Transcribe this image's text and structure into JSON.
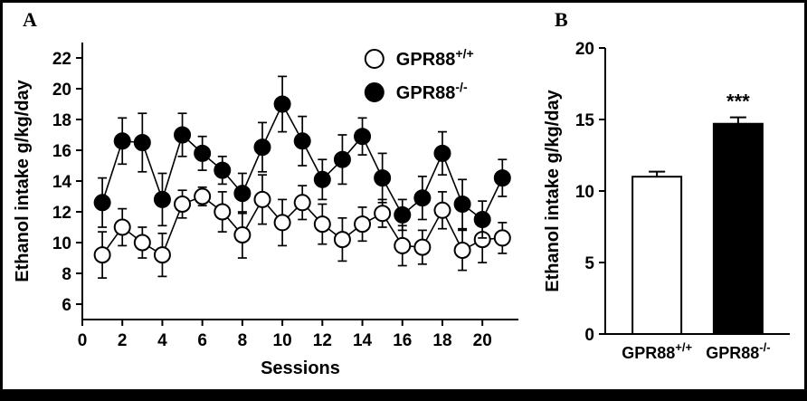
{
  "figure": {
    "panels": [
      {
        "label": "A"
      },
      {
        "label": "B"
      }
    ]
  },
  "chart_data": [
    {
      "type": "line",
      "panel": "A",
      "title": "",
      "xlabel": "Sessions",
      "ylabel": "Ethanol intake g/kg/day",
      "xlim": [
        0,
        21.8
      ],
      "ylim": [
        5,
        23
      ],
      "xticks": [
        0,
        2,
        4,
        6,
        8,
        10,
        12,
        14,
        16,
        18,
        20
      ],
      "yticks": [
        6,
        8,
        10,
        12,
        14,
        16,
        18,
        20,
        22
      ],
      "x": [
        1,
        2,
        3,
        4,
        5,
        6,
        7,
        8,
        9,
        10,
        11,
        12,
        13,
        14,
        15,
        16,
        17,
        18,
        19,
        20,
        21
      ],
      "legend_position": "top-right",
      "series": [
        {
          "name": "GPR88+/+",
          "label_base": "GPR88",
          "label_sup": "+/+",
          "marker": "open",
          "values": [
            9.2,
            11.0,
            10.0,
            9.2,
            12.5,
            13.0,
            12.0,
            10.5,
            12.8,
            11.3,
            12.6,
            11.2,
            10.2,
            11.2,
            11.9,
            9.8,
            9.7,
            12.1,
            9.5,
            10.2,
            10.3
          ],
          "errors": [
            1.5,
            1.2,
            1.0,
            1.4,
            0.9,
            0.6,
            1.3,
            1.5,
            1.6,
            1.5,
            1.1,
            1.3,
            1.4,
            1.1,
            0.9,
            1.3,
            1.1,
            1.2,
            1.3,
            1.5,
            1.0
          ]
        },
        {
          "name": "GPR88-/-",
          "label_base": "GPR88",
          "label_sup": "-/-",
          "marker": "filled",
          "values": [
            12.6,
            16.6,
            16.5,
            12.8,
            17.0,
            15.8,
            14.7,
            13.2,
            16.2,
            19.0,
            16.6,
            14.1,
            15.4,
            16.9,
            14.2,
            11.8,
            12.9,
            15.8,
            12.5,
            11.5,
            14.2
          ],
          "errors": [
            1.6,
            1.5,
            1.9,
            1.7,
            1.4,
            1.1,
            0.9,
            1.3,
            1.6,
            1.8,
            1.6,
            1.3,
            1.6,
            1.2,
            1.6,
            1.0,
            1.4,
            1.4,
            1.6,
            1.2,
            1.2
          ]
        }
      ]
    },
    {
      "type": "bar",
      "panel": "B",
      "title": "",
      "xlabel": "",
      "ylabel": "Ethanol intake g/kg/day",
      "ylim": [
        0,
        20
      ],
      "yticks": [
        0,
        5,
        10,
        15,
        20
      ],
      "categories": [
        {
          "base": "GPR88",
          "sup": "+/+"
        },
        {
          "base": "GPR88",
          "sup": "-/-"
        }
      ],
      "values": [
        11.0,
        14.7
      ],
      "errors": [
        0.35,
        0.45
      ],
      "bar_colors": [
        "#ffffff",
        "#000000"
      ],
      "significance": {
        "label": "***",
        "bar_index": 1
      }
    }
  ],
  "colors": {
    "axis": "#000000",
    "open_marker_fill": "#ffffff",
    "filled_marker_fill": "#000000"
  }
}
